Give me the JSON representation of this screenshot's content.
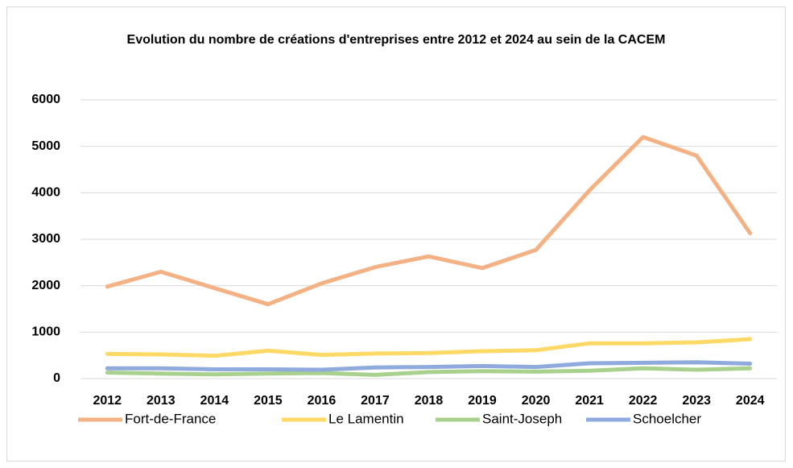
{
  "chart_data": {
    "type": "line",
    "title": "Evolution du nombre de créations d'entreprises entre 2012 et 2024 au sein de la CACEM",
    "categories": [
      "2012",
      "2013",
      "2014",
      "2015",
      "2016",
      "2017",
      "2018",
      "2019",
      "2020",
      "2021",
      "2022",
      "2023",
      "2024"
    ],
    "series": [
      {
        "name": "Fort-de-France",
        "color": "#f4b183",
        "values": [
          1980,
          2300,
          1950,
          1600,
          2050,
          2400,
          2630,
          2380,
          2770,
          4050,
          5200,
          4800,
          3130
        ]
      },
      {
        "name": "Le Lamentin",
        "color": "#ffd966",
        "values": [
          530,
          520,
          490,
          600,
          510,
          540,
          550,
          590,
          610,
          760,
          760,
          780,
          850
        ]
      },
      {
        "name": "Saint-Joseph",
        "color": "#a9d18e",
        "values": [
          130,
          110,
          90,
          110,
          120,
          80,
          140,
          160,
          150,
          170,
          220,
          190,
          220
        ]
      },
      {
        "name": "Schoelcher",
        "color": "#8faadc",
        "values": [
          220,
          220,
          200,
          200,
          190,
          240,
          250,
          270,
          250,
          330,
          340,
          350,
          320
        ]
      }
    ],
    "ylim": [
      0,
      6000
    ],
    "yticks": [
      0,
      1000,
      2000,
      3000,
      4000,
      5000,
      6000
    ],
    "grid": true,
    "legend": "bottom"
  }
}
